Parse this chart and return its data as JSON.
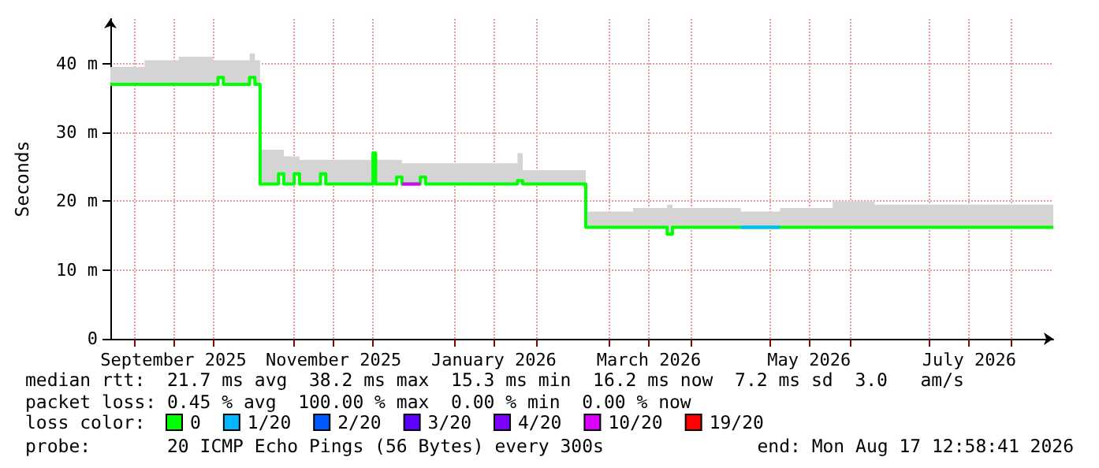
{
  "chart_data": {
    "type": "step",
    "ylabel": "Seconds",
    "legend_title": "loss color:",
    "legend": "bottom",
    "grid": true,
    "annotations": [
      "median rtt:  21.7 ms avg  38.2 ms max  15.3 ms min  16.2 ms now  7.2 ms sd  3.0   am/s",
      "packet loss: 0.45 % avg  100.00 % max  0.00 % min  0.00 % now",
      "probe:       20 ICMP Echo Pings (56 Bytes) every 300s",
      "end: Mon Aug 17 12:58:41 2026"
    ],
    "x": [
      "2025-08-23",
      "2025-09-05",
      "2025-09-18",
      "2025-10-01",
      "2025-10-03",
      "2025-10-05",
      "2025-10-15",
      "2025-10-17",
      "2025-10-19",
      "2025-10-26",
      "2025-10-28",
      "2025-11-01",
      "2025-11-03",
      "2025-11-11",
      "2025-11-13",
      "2025-12-01",
      "2025-12-02",
      "2025-12-10",
      "2025-12-12",
      "2025-12-19",
      "2025-12-21",
      "2026-01-01",
      "2026-01-25",
      "2026-01-27",
      "2026-02-08",
      "2026-02-20",
      "2026-03-10",
      "2026-03-23",
      "2026-03-25",
      "2026-04-20",
      "2026-05-05",
      "2026-05-25",
      "2026-06-10",
      "2026-07-05",
      "2026-07-25",
      "2026-08-17"
    ],
    "series": [
      {
        "name": "0",
        "color": "#00ff00",
        "values": [
          37,
          37,
          37,
          37,
          38,
          37,
          38,
          37,
          22.5,
          24,
          22.5,
          24,
          22.5,
          24,
          22.5,
          27,
          22.5,
          23.5,
          22.5,
          23.5,
          22.5,
          22.5,
          23,
          22.5,
          22.5,
          16.2,
          16.2,
          15.2,
          16.2,
          16.2,
          16.2,
          16.2,
          16.2,
          16.2,
          16.2,
          16.2
        ],
        "lower": [
          37,
          37,
          37,
          37,
          38,
          37,
          38,
          37,
          22.5,
          24,
          22.5,
          24,
          22.5,
          24,
          22.5,
          27,
          22.5,
          23.5,
          22.5,
          23.5,
          22.5,
          22.5,
          23,
          22.5,
          22.5,
          16.2,
          16.2,
          15.2,
          16.2,
          16.2,
          16.2,
          16.2,
          16.2,
          16.2,
          16.2,
          16.2
        ],
        "upper": [
          39.5,
          40.5,
          41,
          40.5,
          40.5,
          40.5,
          41.5,
          40.5,
          27.5,
          27.5,
          26.5,
          26.5,
          26,
          26,
          26,
          27,
          26,
          26,
          25.5,
          25.5,
          25.5,
          25.5,
          27,
          24.5,
          24.5,
          18.5,
          19,
          19.5,
          19,
          18.5,
          19,
          20,
          19.5,
          19.5,
          19.5,
          19.5
        ]
      },
      {
        "name": "1/20",
        "type": "line",
        "color": "#00b8ff",
        "values": [
          null,
          null,
          null,
          null,
          null,
          null,
          null,
          null,
          null,
          null,
          null,
          null,
          null,
          null,
          null,
          null,
          null,
          null,
          null,
          null,
          null,
          null,
          null,
          null,
          null,
          null,
          null,
          null,
          null,
          16.2,
          16.2,
          null,
          null,
          null,
          null,
          null
        ]
      },
      {
        "name": "2/20",
        "color": "#0059ff",
        "values": [
          null,
          null,
          null,
          null,
          null,
          null,
          null,
          null,
          null,
          null,
          null,
          null,
          null,
          null,
          null,
          null,
          null,
          null,
          null,
          null,
          null,
          null,
          null,
          null,
          null,
          null,
          null,
          null,
          null,
          null,
          null,
          null,
          null,
          null,
          null,
          null
        ]
      },
      {
        "name": "3/20",
        "color": "#5e00ff",
        "values": [
          null,
          null,
          null,
          null,
          null,
          null,
          null,
          null,
          null,
          null,
          null,
          null,
          null,
          null,
          null,
          null,
          null,
          null,
          null,
          null,
          null,
          null,
          null,
          null,
          null,
          null,
          null,
          null,
          null,
          null,
          null,
          null,
          null,
          null,
          null,
          null
        ]
      },
      {
        "name": "4/20",
        "color": "#7e00ff",
        "values": [
          null,
          null,
          null,
          null,
          null,
          null,
          null,
          null,
          null,
          null,
          null,
          null,
          null,
          null,
          null,
          null,
          null,
          null,
          null,
          null,
          null,
          null,
          null,
          null,
          null,
          null,
          null,
          null,
          null,
          null,
          null,
          null,
          null,
          null,
          null,
          null
        ]
      },
      {
        "name": "10/20",
        "type": "line",
        "color": "#dd00ff",
        "values": [
          null,
          null,
          null,
          null,
          null,
          null,
          null,
          null,
          null,
          null,
          null,
          null,
          null,
          null,
          null,
          null,
          null,
          null,
          22.5,
          22.5,
          null,
          null,
          null,
          null,
          null,
          null,
          null,
          null,
          null,
          null,
          null,
          null,
          null,
          null,
          null,
          null
        ]
      },
      {
        "name": "19/20",
        "color": "#ff0000",
        "values": [
          null,
          null,
          null,
          null,
          null,
          null,
          null,
          null,
          null,
          null,
          null,
          null,
          null,
          null,
          null,
          null,
          null,
          null,
          null,
          null,
          null,
          null,
          null,
          null,
          null,
          null,
          null,
          null,
          null,
          null,
          null,
          null,
          null,
          null,
          null,
          null
        ]
      }
    ],
    "xlim": [
      "2025-08-23",
      "2026-08-17"
    ],
    "xticks": [
      {
        "value": "2025-09-01",
        "label": null
      },
      {
        "value": "2025-09-16",
        "label": "September 2025"
      },
      {
        "value": "2025-10-01",
        "label": null
      },
      {
        "value": "2025-11-01",
        "label": null
      },
      {
        "value": "2025-11-16",
        "label": "November 2025"
      },
      {
        "value": "2025-12-01",
        "label": null
      },
      {
        "value": "2026-01-01",
        "label": null
      },
      {
        "value": "2026-01-16",
        "label": "January 2026"
      },
      {
        "value": "2026-02-01",
        "label": null
      },
      {
        "value": "2026-03-01",
        "label": null
      },
      {
        "value": "2026-03-16",
        "label": "March 2026"
      },
      {
        "value": "2026-04-01",
        "label": null
      },
      {
        "value": "2026-05-01",
        "label": null
      },
      {
        "value": "2026-05-16",
        "label": "May 2026"
      },
      {
        "value": "2026-06-01",
        "label": null
      },
      {
        "value": "2026-07-01",
        "label": null
      },
      {
        "value": "2026-07-16",
        "label": "July 2026"
      },
      {
        "value": "2026-08-01",
        "label": null
      }
    ],
    "ylim": [
      0,
      46.5
    ],
    "yticks": [
      {
        "value": 0,
        "label": "0"
      },
      {
        "value": 10,
        "label": "10 m"
      },
      {
        "value": 20,
        "label": "20 m"
      },
      {
        "value": 30,
        "label": "30 m"
      },
      {
        "value": 40,
        "label": "40 m"
      }
    ]
  }
}
